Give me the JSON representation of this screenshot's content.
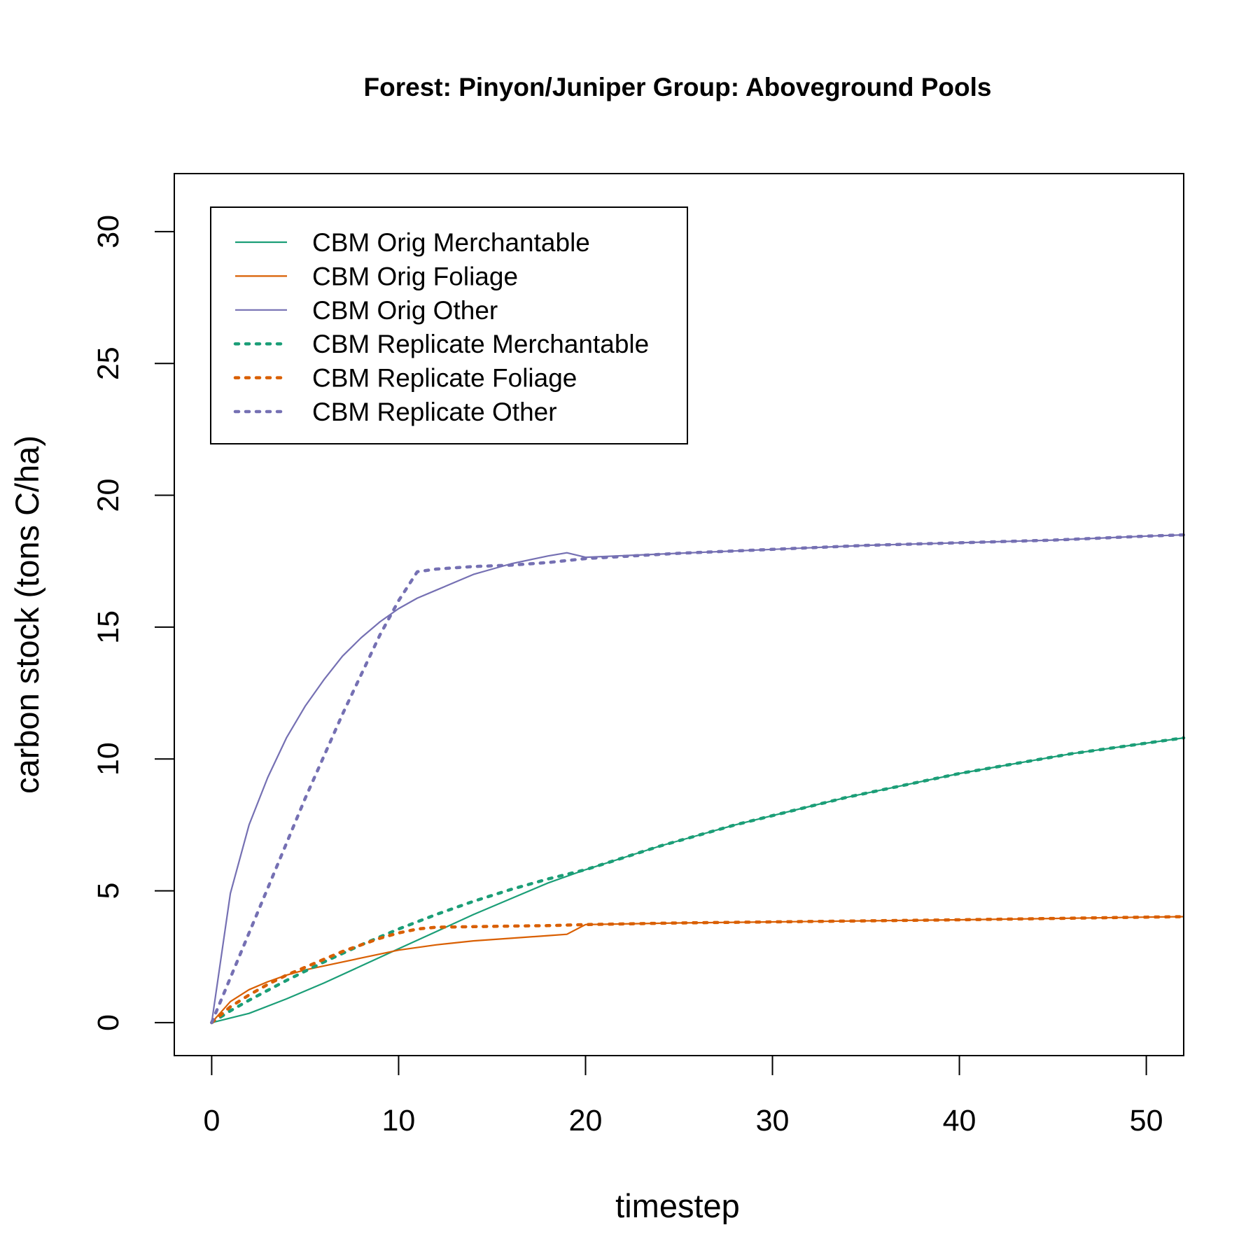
{
  "chart_data": {
    "type": "line",
    "title": "Forest: Pinyon/Juniper Group: Aboveground Pools",
    "xlabel": "timestep",
    "ylabel": "carbon stock (tons C/ha)",
    "xlim": [
      -2,
      52
    ],
    "ylim": [
      -1.25,
      32.2
    ],
    "x_ticks": [
      "0",
      "10",
      "20",
      "30",
      "40",
      "50"
    ],
    "y_ticks": [
      "0",
      "5",
      "10",
      "15",
      "20",
      "25",
      "30"
    ],
    "grid": false,
    "legend_position": "top-left",
    "series": [
      {
        "name": "CBM Orig Merchantable",
        "color": "#1b9e77",
        "style": "solid",
        "x": [
          0,
          2,
          4,
          6,
          8,
          10,
          12,
          14,
          16,
          18,
          20,
          22,
          24,
          26,
          28,
          30,
          32,
          34,
          36,
          38,
          40,
          42,
          44,
          46,
          48,
          50,
          52
        ],
        "y": [
          0,
          0.35,
          0.9,
          1.5,
          2.15,
          2.8,
          3.45,
          4.1,
          4.7,
          5.3,
          5.8,
          6.25,
          6.7,
          7.1,
          7.5,
          7.85,
          8.2,
          8.55,
          8.85,
          9.15,
          9.45,
          9.7,
          9.95,
          10.2,
          10.4,
          10.6,
          10.8
        ]
      },
      {
        "name": "CBM Orig Foliage",
        "color": "#d95f02",
        "style": "solid",
        "x": [
          0,
          1,
          2,
          3,
          4,
          5,
          6,
          8,
          10,
          12,
          14,
          16,
          18,
          19,
          20,
          25,
          30,
          35,
          40,
          45,
          50,
          52
        ],
        "y": [
          0,
          0.8,
          1.25,
          1.55,
          1.8,
          2.0,
          2.15,
          2.45,
          2.75,
          2.95,
          3.1,
          3.2,
          3.3,
          3.35,
          3.72,
          3.78,
          3.82,
          3.86,
          3.9,
          3.95,
          4.0,
          4.02
        ]
      },
      {
        "name": "CBM Orig Other",
        "color": "#7570b3",
        "style": "solid",
        "x": [
          0,
          1,
          2,
          3,
          4,
          5,
          6,
          7,
          8,
          9,
          10,
          11,
          12,
          13,
          14,
          15,
          16,
          17,
          18,
          19,
          20,
          25,
          30,
          35,
          40,
          45,
          50,
          52
        ],
        "y": [
          0,
          4.9,
          7.5,
          9.3,
          10.8,
          12.0,
          13.0,
          13.9,
          14.6,
          15.2,
          15.7,
          16.1,
          16.4,
          16.7,
          17.0,
          17.2,
          17.4,
          17.55,
          17.7,
          17.82,
          17.65,
          17.8,
          17.95,
          18.1,
          18.2,
          18.3,
          18.45,
          18.5
        ]
      },
      {
        "name": "CBM Replicate Merchantable",
        "color": "#1b9e77",
        "style": "dotted",
        "x": [
          0,
          1,
          2,
          4,
          6,
          8,
          10,
          12,
          14,
          16,
          18,
          20,
          22,
          24,
          26,
          28,
          30,
          32,
          34,
          36,
          38,
          40,
          42,
          44,
          46,
          48,
          50,
          52
        ],
        "y": [
          0,
          0.45,
          0.85,
          1.6,
          2.3,
          2.95,
          3.55,
          4.1,
          4.6,
          5.05,
          5.45,
          5.8,
          6.25,
          6.7,
          7.1,
          7.5,
          7.85,
          8.2,
          8.55,
          8.85,
          9.15,
          9.45,
          9.7,
          9.95,
          10.2,
          10.4,
          10.6,
          10.8
        ]
      },
      {
        "name": "CBM Replicate Foliage",
        "color": "#d95f02",
        "style": "dotted",
        "x": [
          0,
          1,
          2,
          3,
          4,
          5,
          6,
          7,
          8,
          9,
          10,
          11,
          12,
          14,
          16,
          18,
          20,
          25,
          30,
          35,
          40,
          45,
          50,
          52
        ],
        "y": [
          0,
          0.6,
          1.05,
          1.45,
          1.8,
          2.1,
          2.4,
          2.7,
          2.95,
          3.2,
          3.4,
          3.55,
          3.62,
          3.64,
          3.66,
          3.68,
          3.72,
          3.78,
          3.82,
          3.86,
          3.9,
          3.95,
          4.0,
          4.02
        ]
      },
      {
        "name": "CBM Replicate Other",
        "color": "#7570b3",
        "style": "dotted",
        "x": [
          0,
          1,
          2,
          3,
          4,
          5,
          6,
          7,
          8,
          9,
          10,
          11,
          12,
          14,
          16,
          18,
          20,
          25,
          30,
          35,
          40,
          45,
          50,
          52
        ],
        "y": [
          0,
          1.7,
          3.4,
          5.1,
          6.8,
          8.5,
          10.1,
          11.7,
          13.2,
          14.7,
          16.0,
          17.1,
          17.2,
          17.3,
          17.35,
          17.45,
          17.6,
          17.8,
          17.95,
          18.1,
          18.2,
          18.3,
          18.45,
          18.5
        ]
      }
    ]
  }
}
